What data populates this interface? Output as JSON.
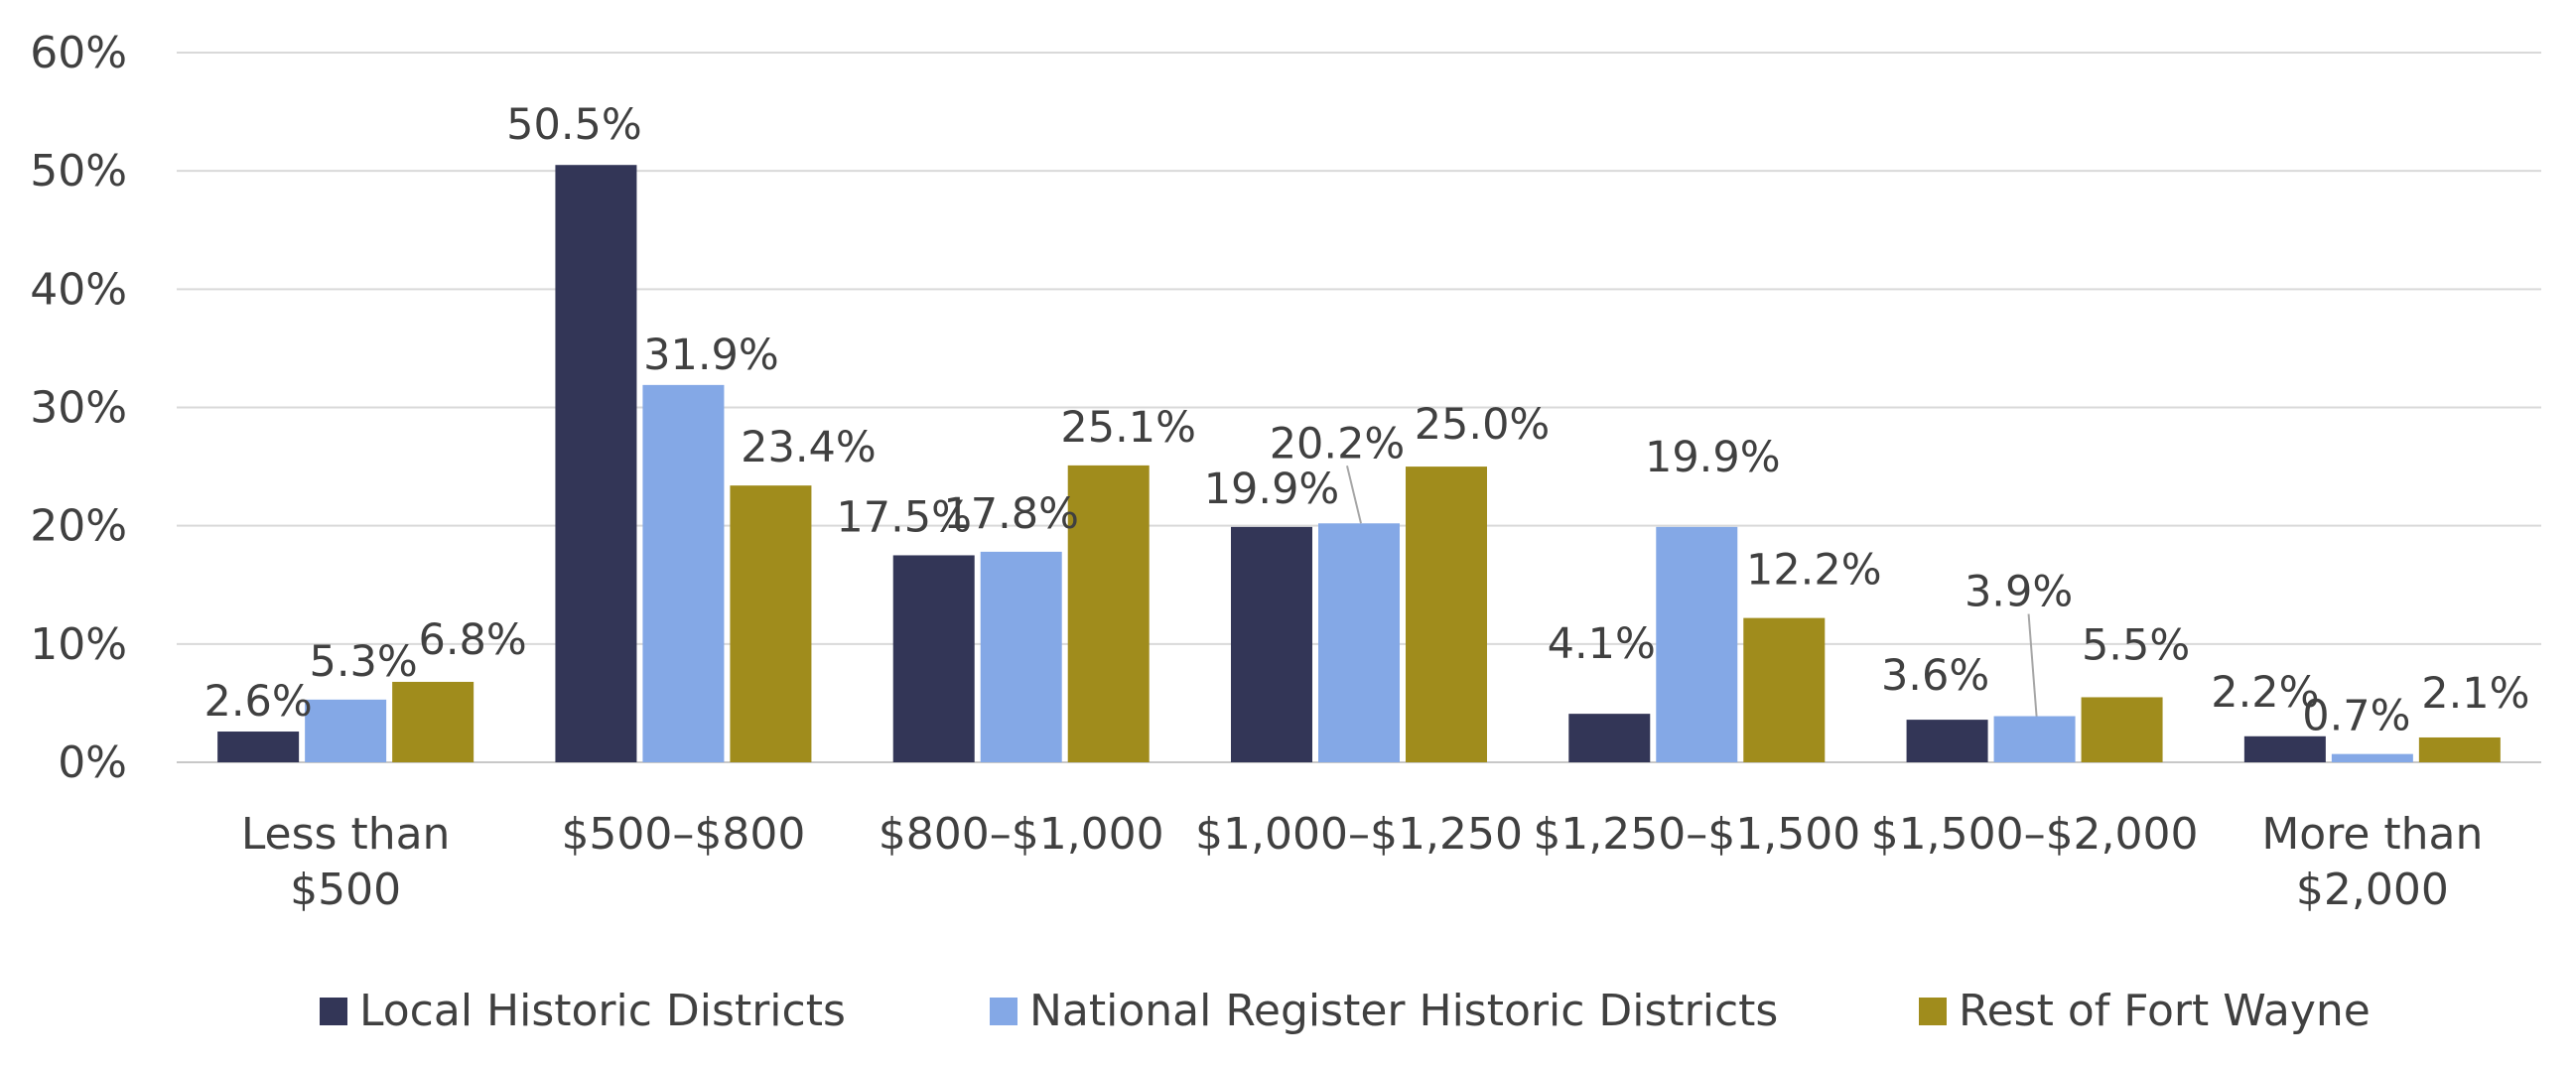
{
  "chart_data": {
    "type": "bar",
    "title": "",
    "xlabel": "",
    "ylabel": "",
    "ylim": [
      0,
      60
    ],
    "yticks": [
      "0%",
      "10%",
      "20%",
      "30%",
      "40%",
      "50%",
      "60%"
    ],
    "ytick_values": [
      0,
      10,
      20,
      30,
      40,
      50,
      60
    ],
    "grid": true,
    "legend_position": "bottom",
    "categories": [
      [
        "Less than",
        "$500"
      ],
      [
        "$500–$800"
      ],
      [
        "$800–$1,000"
      ],
      [
        "$1,000–$1,250"
      ],
      [
        "$1,250–$1,500"
      ],
      [
        "$1,500–$2,000"
      ],
      [
        "More than",
        "$2,000"
      ]
    ],
    "series": [
      {
        "name": "Local Historic Districts",
        "color": "#333657",
        "values": [
          2.6,
          50.5,
          17.5,
          19.9,
          4.1,
          3.6,
          2.2
        ],
        "labels": [
          "2.6%",
          "50.5%",
          "17.5%",
          "19.9%",
          "4.1%",
          "3.6%",
          "2.2%"
        ]
      },
      {
        "name": "National Register Historic Districts",
        "color": "#84A8E6",
        "values": [
          5.3,
          31.9,
          17.8,
          20.2,
          19.9,
          3.9,
          0.7
        ],
        "labels": [
          "5.3%",
          "31.9%",
          "17.8%",
          "20.2%",
          "19.9%",
          "3.9%",
          "0.7%"
        ]
      },
      {
        "name": "Rest of Fort Wayne",
        "color": "#A08C1C",
        "values": [
          6.8,
          23.4,
          25.1,
          25.0,
          12.2,
          5.5,
          2.1
        ],
        "labels": [
          "6.8%",
          "23.4%",
          "25.1%",
          "25.0%",
          "12.2%",
          "5.5%",
          "2.1%"
        ]
      }
    ]
  }
}
